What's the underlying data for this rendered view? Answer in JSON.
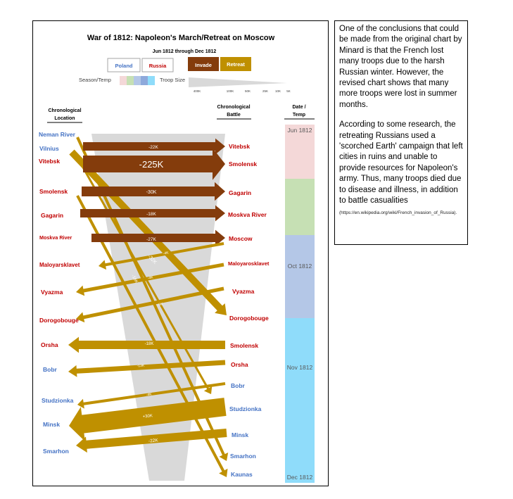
{
  "chart_data": {
    "type": "flow",
    "title": "War of 1812:  Napoleon's March/Retreat on Moscow",
    "subtitle": "Jun 1812 through Dec 1812",
    "legend": {
      "sides": [
        "Poland",
        "Russia"
      ],
      "directions": [
        "Invade",
        "Retreat"
      ],
      "season_label": "Season/Temp",
      "troop_label": "Troop Size",
      "troop_ticks": [
        "400K",
        "100K",
        "50K",
        "25K",
        "10K",
        "5K"
      ]
    },
    "column_headers": {
      "left": "Chronological Location",
      "right": "Chronological Battle",
      "date": "Date / Temp"
    },
    "colors": {
      "invade": "#843c0c",
      "retreat": "#bf9000",
      "poland": "#4472c4",
      "russia": "#c00000",
      "jun": "#f4d8d8",
      "summer": "#c6e0b4",
      "oct": "#b4c7e7",
      "nov": "#8fdcfa"
    },
    "left_locations": [
      {
        "name": "Neman River",
        "side": "Poland"
      },
      {
        "name": "Vilnius",
        "side": "Poland"
      },
      {
        "name": "Vitebsk",
        "side": "Russia"
      },
      {
        "name": "Smolensk",
        "side": "Russia"
      },
      {
        "name": "Gagarin",
        "side": "Russia"
      },
      {
        "name": "Moskva River",
        "side": "Russia"
      },
      {
        "name": "Maloyarsklavet",
        "side": "Russia"
      },
      {
        "name": "Vyazma",
        "side": "Russia"
      },
      {
        "name": "Dorogobouge",
        "side": "Russia"
      },
      {
        "name": "Orsha",
        "side": "Russia"
      },
      {
        "name": "Bobr",
        "side": "Poland"
      },
      {
        "name": "Studzionka",
        "side": "Poland"
      },
      {
        "name": "Minsk",
        "side": "Poland"
      },
      {
        "name": "Smarhon",
        "side": "Poland"
      }
    ],
    "right_battles": [
      {
        "name": "Vitebsk",
        "side": "Russia"
      },
      {
        "name": "Smolensk",
        "side": "Russia"
      },
      {
        "name": "Gagarin",
        "side": "Russia"
      },
      {
        "name": "Moskva River",
        "side": "Russia"
      },
      {
        "name": "Moscow",
        "side": "Russia"
      },
      {
        "name": "Maloyarosklavet",
        "side": "Russia"
      },
      {
        "name": "Vyazma",
        "side": "Russia"
      },
      {
        "name": "Dorogobouge",
        "side": "Russia"
      },
      {
        "name": "Smolensk",
        "side": "Russia"
      },
      {
        "name": "Orsha",
        "side": "Russia"
      },
      {
        "name": "Bobr",
        "side": "Poland"
      },
      {
        "name": "Studzionka",
        "side": "Poland"
      },
      {
        "name": "Minsk",
        "side": "Poland"
      },
      {
        "name": "Smarhon",
        "side": "Poland"
      },
      {
        "name": "Kaunas",
        "side": "Poland"
      }
    ],
    "flows": [
      {
        "from": "Vilnius",
        "to": "Vitebsk",
        "direction": "invade",
        "label": "-22K"
      },
      {
        "from": "Vitebsk",
        "to": "Smolensk",
        "direction": "invade",
        "label": "-225K"
      },
      {
        "from": "Smolensk",
        "to": "Gagarin",
        "direction": "invade",
        "label": "-30K"
      },
      {
        "from": "Gagarin",
        "to": "Moskva River",
        "direction": "invade",
        "label": "-18K"
      },
      {
        "from": "Moskva River",
        "to": "Moscow",
        "direction": "invade",
        "label": "-27K"
      },
      {
        "from": "Moscow",
        "to": "Maloyarsklavet",
        "direction": "retreat",
        "label": "-4K"
      },
      {
        "from": "Maloyarosklavet",
        "to": "Vyazma",
        "direction": "retreat",
        "label": "-4K"
      },
      {
        "from": "Vyazma",
        "to": "Dorogobouge",
        "direction": "retreat",
        "label": "-9K"
      },
      {
        "from": "Smolensk",
        "to": "Orsha",
        "direction": "retreat",
        "label": "-18K"
      },
      {
        "from": "Orsha",
        "to": "Bobr",
        "direction": "retreat",
        "label": "-13K"
      },
      {
        "from": "Bobr",
        "to": "Studzionka",
        "direction": "retreat",
        "label": "-4K"
      },
      {
        "from": "Studzionka",
        "to": "Minsk",
        "direction": "retreat",
        "label": "+30K"
      },
      {
        "from": "Minsk",
        "to": "Smarhon",
        "direction": "retreat",
        "label": "-22K"
      },
      {
        "from": "Neman River",
        "to": "Kaunas",
        "direction": "retreat",
        "label": "-16K"
      },
      {
        "from": "Vilnius",
        "to": "Dorogobouge",
        "direction": "retreat",
        "label": "-32K"
      }
    ],
    "date_column": [
      "Jun 1812",
      "Oct 1812",
      "Nov 1812",
      "Dec 1812"
    ]
  },
  "note": {
    "paragraph1": "One of the conclusions that could be made from the original chart by Minard is that the French lost many troops due to the harsh Russian winter.  However, the revised chart shows that many more troops were lost in summer months.",
    "paragraph2": "According to some research, the retreating Russians used a 'scorched Earth' campaign that left cities in ruins and unable to provide resources for Napoleon's army.  Thus, many troops died due to disease and illness, in addition to battle casualities",
    "source": "(https://en.wikipedia.org/wiki/French_invasion_of_Russia)."
  }
}
